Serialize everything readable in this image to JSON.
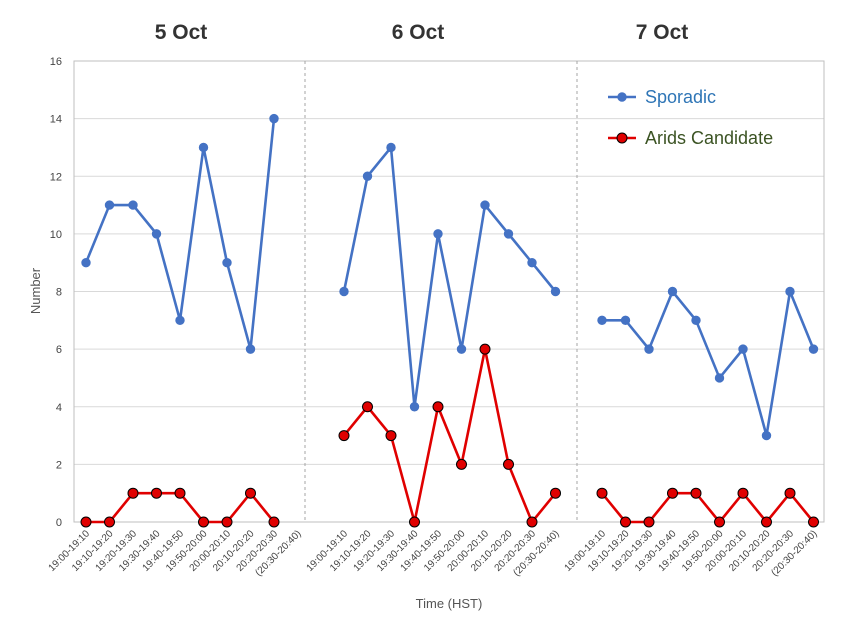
{
  "chart_data": {
    "type": "line",
    "panels": [
      {
        "title": "5 Oct",
        "categories": [
          "19:00-19:10",
          "19:10-19:20",
          "19:20-19:30",
          "19:30-19:40",
          "19:40-19:50",
          "19:50-20:00",
          "20:00-20:10",
          "20:10-20:20",
          "20:20-20:30",
          "(20:30-20:40)"
        ],
        "series": [
          {
            "name": "Sporadic",
            "values": [
              9,
              11,
              11,
              10,
              7,
              13,
              9,
              6,
              14,
              null
            ]
          },
          {
            "name": "Arids Candidate",
            "values": [
              0,
              0,
              1,
              1,
              1,
              0,
              0,
              1,
              0,
              null
            ]
          }
        ]
      },
      {
        "title": "6 Oct",
        "categories": [
          "19:00-19:10",
          "19:10-19:20",
          "19:20-19:30",
          "19:30-19:40",
          "19:40-19:50",
          "19:50-20:00",
          "20:00-20:10",
          "20:10-20:20",
          "20:20-20:30",
          "(20:30-20:40)"
        ],
        "series": [
          {
            "name": "Sporadic",
            "values": [
              8,
              12,
              13,
              4,
              10,
              6,
              11,
              10,
              9,
              8
            ]
          },
          {
            "name": "Arids Candidate",
            "values": [
              3,
              4,
              3,
              0,
              4,
              2,
              6,
              2,
              0,
              1
            ]
          }
        ]
      },
      {
        "title": "7 Oct",
        "categories": [
          "19:00-19:10",
          "19:10-19:20",
          "19:20-19:30",
          "19:30-19:40",
          "19:40-19:50",
          "19:50-20:00",
          "20:00-20:10",
          "20:10-20:20",
          "20:20-20:30",
          "(20:30-20:40)"
        ],
        "series": [
          {
            "name": "Sporadic",
            "values": [
              7,
              7,
              6,
              8,
              7,
              5,
              6,
              3,
              8,
              6
            ]
          },
          {
            "name": "Arids Candidate",
            "values": [
              1,
              0,
              0,
              1,
              1,
              0,
              1,
              0,
              1,
              0
            ]
          }
        ]
      }
    ],
    "xlabel": "Time (HST)",
    "ylabel": "Number",
    "ylim": [
      0,
      16
    ],
    "yticks": [
      0,
      2,
      4,
      6,
      8,
      10,
      12,
      14,
      16
    ],
    "grid": true,
    "legend": {
      "placement": "top-right",
      "entries": [
        {
          "name": "Sporadic",
          "color": "#4472C4",
          "marker": "#4472C4"
        },
        {
          "name": "Arids Candidate",
          "color": "#E00000",
          "marker": "#E00000"
        }
      ]
    },
    "colors": {
      "sporadic": "#4472C4",
      "arids": "#E00000",
      "arids_marker_edge": "#000000",
      "legend_sporadic_text": "#2E75B6",
      "legend_arids_text": "#3B5323",
      "grid": "#D9D9D9",
      "divider": "#A6A6A6"
    }
  }
}
